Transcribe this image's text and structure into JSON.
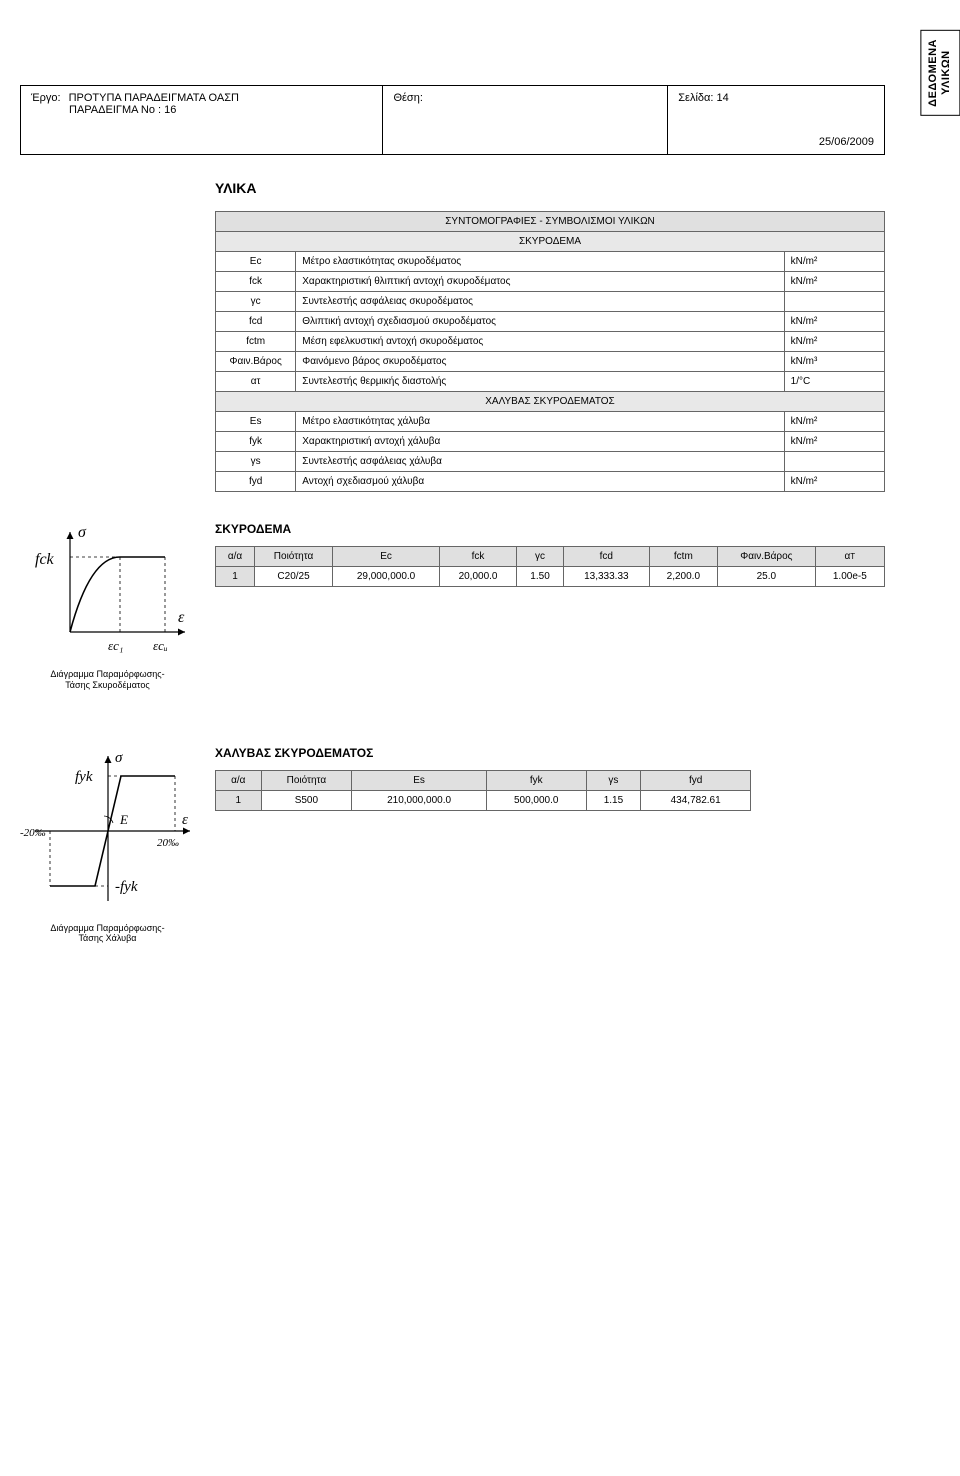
{
  "sideTab": {
    "line1": "ΔΕΔΟΜΕΝΑ",
    "line2": "ΥΛΙΚΩΝ"
  },
  "header": {
    "projectLabel": "Έργο:",
    "projectLine1": "ΠΡΟΤΥΠΑ ΠΑΡΑΔΕΙΓΜΑΤΑ ΟΑΣΠ",
    "projectLine2": "ΠΑΡΑΔΕΙΓΜΑ Νο : 16",
    "positionLabel": "Θέση:",
    "pageLabel": "Σελίδα: 14",
    "date": "25/06/2009"
  },
  "title": "ΥΛΙΚΑ",
  "abbrev": {
    "heading": "ΣΥΝΤΟΜΟΓΡΑΦΙΕΣ - ΣΥΜΒΟΛΙΣΜΟΙ ΥΛΙΚΩΝ",
    "sub1": "ΣΚΥΡΟΔΕΜΑ",
    "rows1": [
      {
        "sym": "Ec",
        "desc": "Μέτρο ελαστικότητας σκυροδέματος",
        "unit": "kN/m²"
      },
      {
        "sym": "fck",
        "desc": "Χαρακτηριστική θλιπτική αντοχή σκυροδέματος",
        "unit": "kN/m²"
      },
      {
        "sym": "γc",
        "desc": "Συντελεστής ασφάλειας σκυροδέματος",
        "unit": ""
      },
      {
        "sym": "fcd",
        "desc": "Θλιπτική αντοχή σχεδιασμού σκυροδέματος",
        "unit": "kN/m²"
      },
      {
        "sym": "fctm",
        "desc": "Μέση εφελκυστική αντοχή σκυροδέματος",
        "unit": "kN/m²"
      },
      {
        "sym": "Φαιν.Βάρος",
        "desc": "Φαινόμενο βάρος σκυροδέματος",
        "unit": "kN/m³"
      },
      {
        "sym": "ατ",
        "desc": "Συντελεστής θερμικής διαστολής",
        "unit": "1/°C"
      }
    ],
    "sub2": "ΧΑΛΥΒΑΣ ΣΚΥΡΟΔΕΜΑΤΟΣ",
    "rows2": [
      {
        "sym": "Es",
        "desc": "Μέτρο ελαστικότητας χάλυβα",
        "unit": "kN/m²"
      },
      {
        "sym": "fyk",
        "desc": "Χαρακτηριστική αντοχή χάλυβα",
        "unit": "kN/m²"
      },
      {
        "sym": "γs",
        "desc": "Συντελεστής ασφάλειας χάλυβα",
        "unit": ""
      },
      {
        "sym": "fyd",
        "desc": "Αντοχή σχεδιασμού χάλυβα",
        "unit": "kN/m²"
      }
    ]
  },
  "concrete": {
    "title": "ΣΚΥΡΟΔΕΜΑ",
    "headers": [
      "α/α",
      "Ποιότητα",
      "Ec",
      "fck",
      "γc",
      "fcd",
      "fctm",
      "Φαιν.Βάρος",
      "ατ"
    ],
    "row": [
      "1",
      "C20/25",
      "29,000,000.0",
      "20,000.0",
      "1.50",
      "13,333.33",
      "2,200.0",
      "25.0",
      "1.00e-5"
    ],
    "diagramCaption1": "Διάγραμμα Παραμόρφωσης-",
    "diagramCaption2": "Τάσης Σκυροδέματος",
    "labels": {
      "sigma": "σ",
      "fck": "fck",
      "eps": "ε",
      "ec1": "εc₁",
      "ecu": "εcᵤ"
    }
  },
  "steel": {
    "title": "ΧΑΛΥΒΑΣ ΣΚΥΡΟΔΕΜΑΤΟΣ",
    "headers": [
      "α/α",
      "Ποιότητα",
      "Es",
      "fyk",
      "γs",
      "fyd"
    ],
    "row": [
      "1",
      "S500",
      "210,000,000.0",
      "500,000.0",
      "1.15",
      "434,782.61"
    ],
    "diagramCaption1": "Διάγραμμα Παραμόρφωσης-",
    "diagramCaption2": "Τάσης Χάλυβα",
    "labels": {
      "sigma": "σ",
      "fyk": "fyk",
      "nfyk": "-fyk",
      "E": "E",
      "eps": "ε",
      "p20": "20‰",
      "n20": "-20‰"
    }
  }
}
